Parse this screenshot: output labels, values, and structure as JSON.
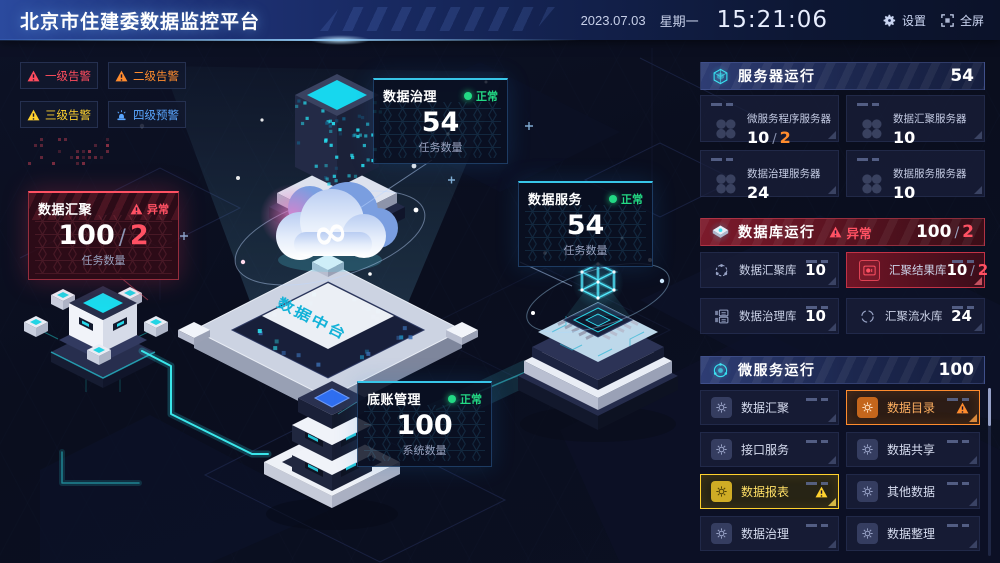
{
  "header": {
    "title": "北京市住建委数据监控平台",
    "date": "2023.07.03",
    "weekday": "星期一",
    "time": "15:21:06",
    "settings_label": "设置",
    "fullscreen_label": "全屏"
  },
  "alert_legend": [
    {
      "label": "一级告警",
      "icon": "tri",
      "color": "#ff4d5e"
    },
    {
      "label": "二级告警",
      "icon": "tri",
      "color": "#ff8c2e"
    },
    {
      "label": "三级告警",
      "icon": "tri",
      "color": "#ffd22e"
    },
    {
      "label": "四级预警",
      "icon": "siren",
      "color": "#5aa6ff"
    }
  ],
  "scene": {
    "center_label": "数据中台",
    "infinity_symbol": "∞",
    "cards": [
      {
        "title": "数据治理",
        "status": "正常",
        "value": "54",
        "caption": "任务数量"
      },
      {
        "title": "数据服务",
        "status": "正常",
        "value": "54",
        "caption": "任务数量"
      },
      {
        "title": "数据汇聚",
        "status": "异常",
        "value_main": "100",
        "value_sep": "/",
        "value_alert": "2",
        "caption": "任务数量"
      },
      {
        "title": "底账管理",
        "status": "正常",
        "value": "100",
        "caption": "系统数量"
      }
    ]
  },
  "panels": {
    "separator": "/",
    "servers": {
      "title": "服务器运行",
      "total": "54",
      "items": [
        {
          "label": "微服务程序服务器",
          "value": "10",
          "alert": "2"
        },
        {
          "label": "数据汇聚服务器",
          "value": "10"
        },
        {
          "label": "数据治理服务器",
          "value": "24"
        },
        {
          "label": "数据服务服务器",
          "value": "10"
        }
      ]
    },
    "databases": {
      "title": "数据库运行",
      "status": "异常",
      "total": "100",
      "total_sep": "/",
      "total_alert": "2",
      "items": [
        {
          "label": "数据汇聚库",
          "value": "10",
          "icon": "dbnet"
        },
        {
          "label": "汇聚结果库",
          "value": "10",
          "alert": "2",
          "icon": "dbdisc",
          "highlight": "red"
        },
        {
          "label": "数据治理库",
          "value": "10",
          "icon": "dblist"
        },
        {
          "label": "汇聚流水库",
          "value": "24",
          "icon": "dbring"
        }
      ]
    },
    "microservices": {
      "title": "微服务运行",
      "total": "100",
      "items": [
        {
          "label": "数据汇聚"
        },
        {
          "label": "数据目录",
          "highlight": "orange",
          "warning": true
        },
        {
          "label": "接口服务"
        },
        {
          "label": "数据共享"
        },
        {
          "label": "数据报表",
          "highlight": "yellow",
          "warning": true
        },
        {
          "label": "其他数据"
        },
        {
          "label": "数据治理"
        },
        {
          "label": "数据整理"
        }
      ]
    }
  },
  "colors": {
    "accent": "#38c6e8",
    "ok": "#23d984",
    "danger": "#ff5163",
    "warn_orange": "#ff8c2e",
    "warn_yellow": "#ffd22e",
    "info_blue": "#5aa6ff"
  }
}
